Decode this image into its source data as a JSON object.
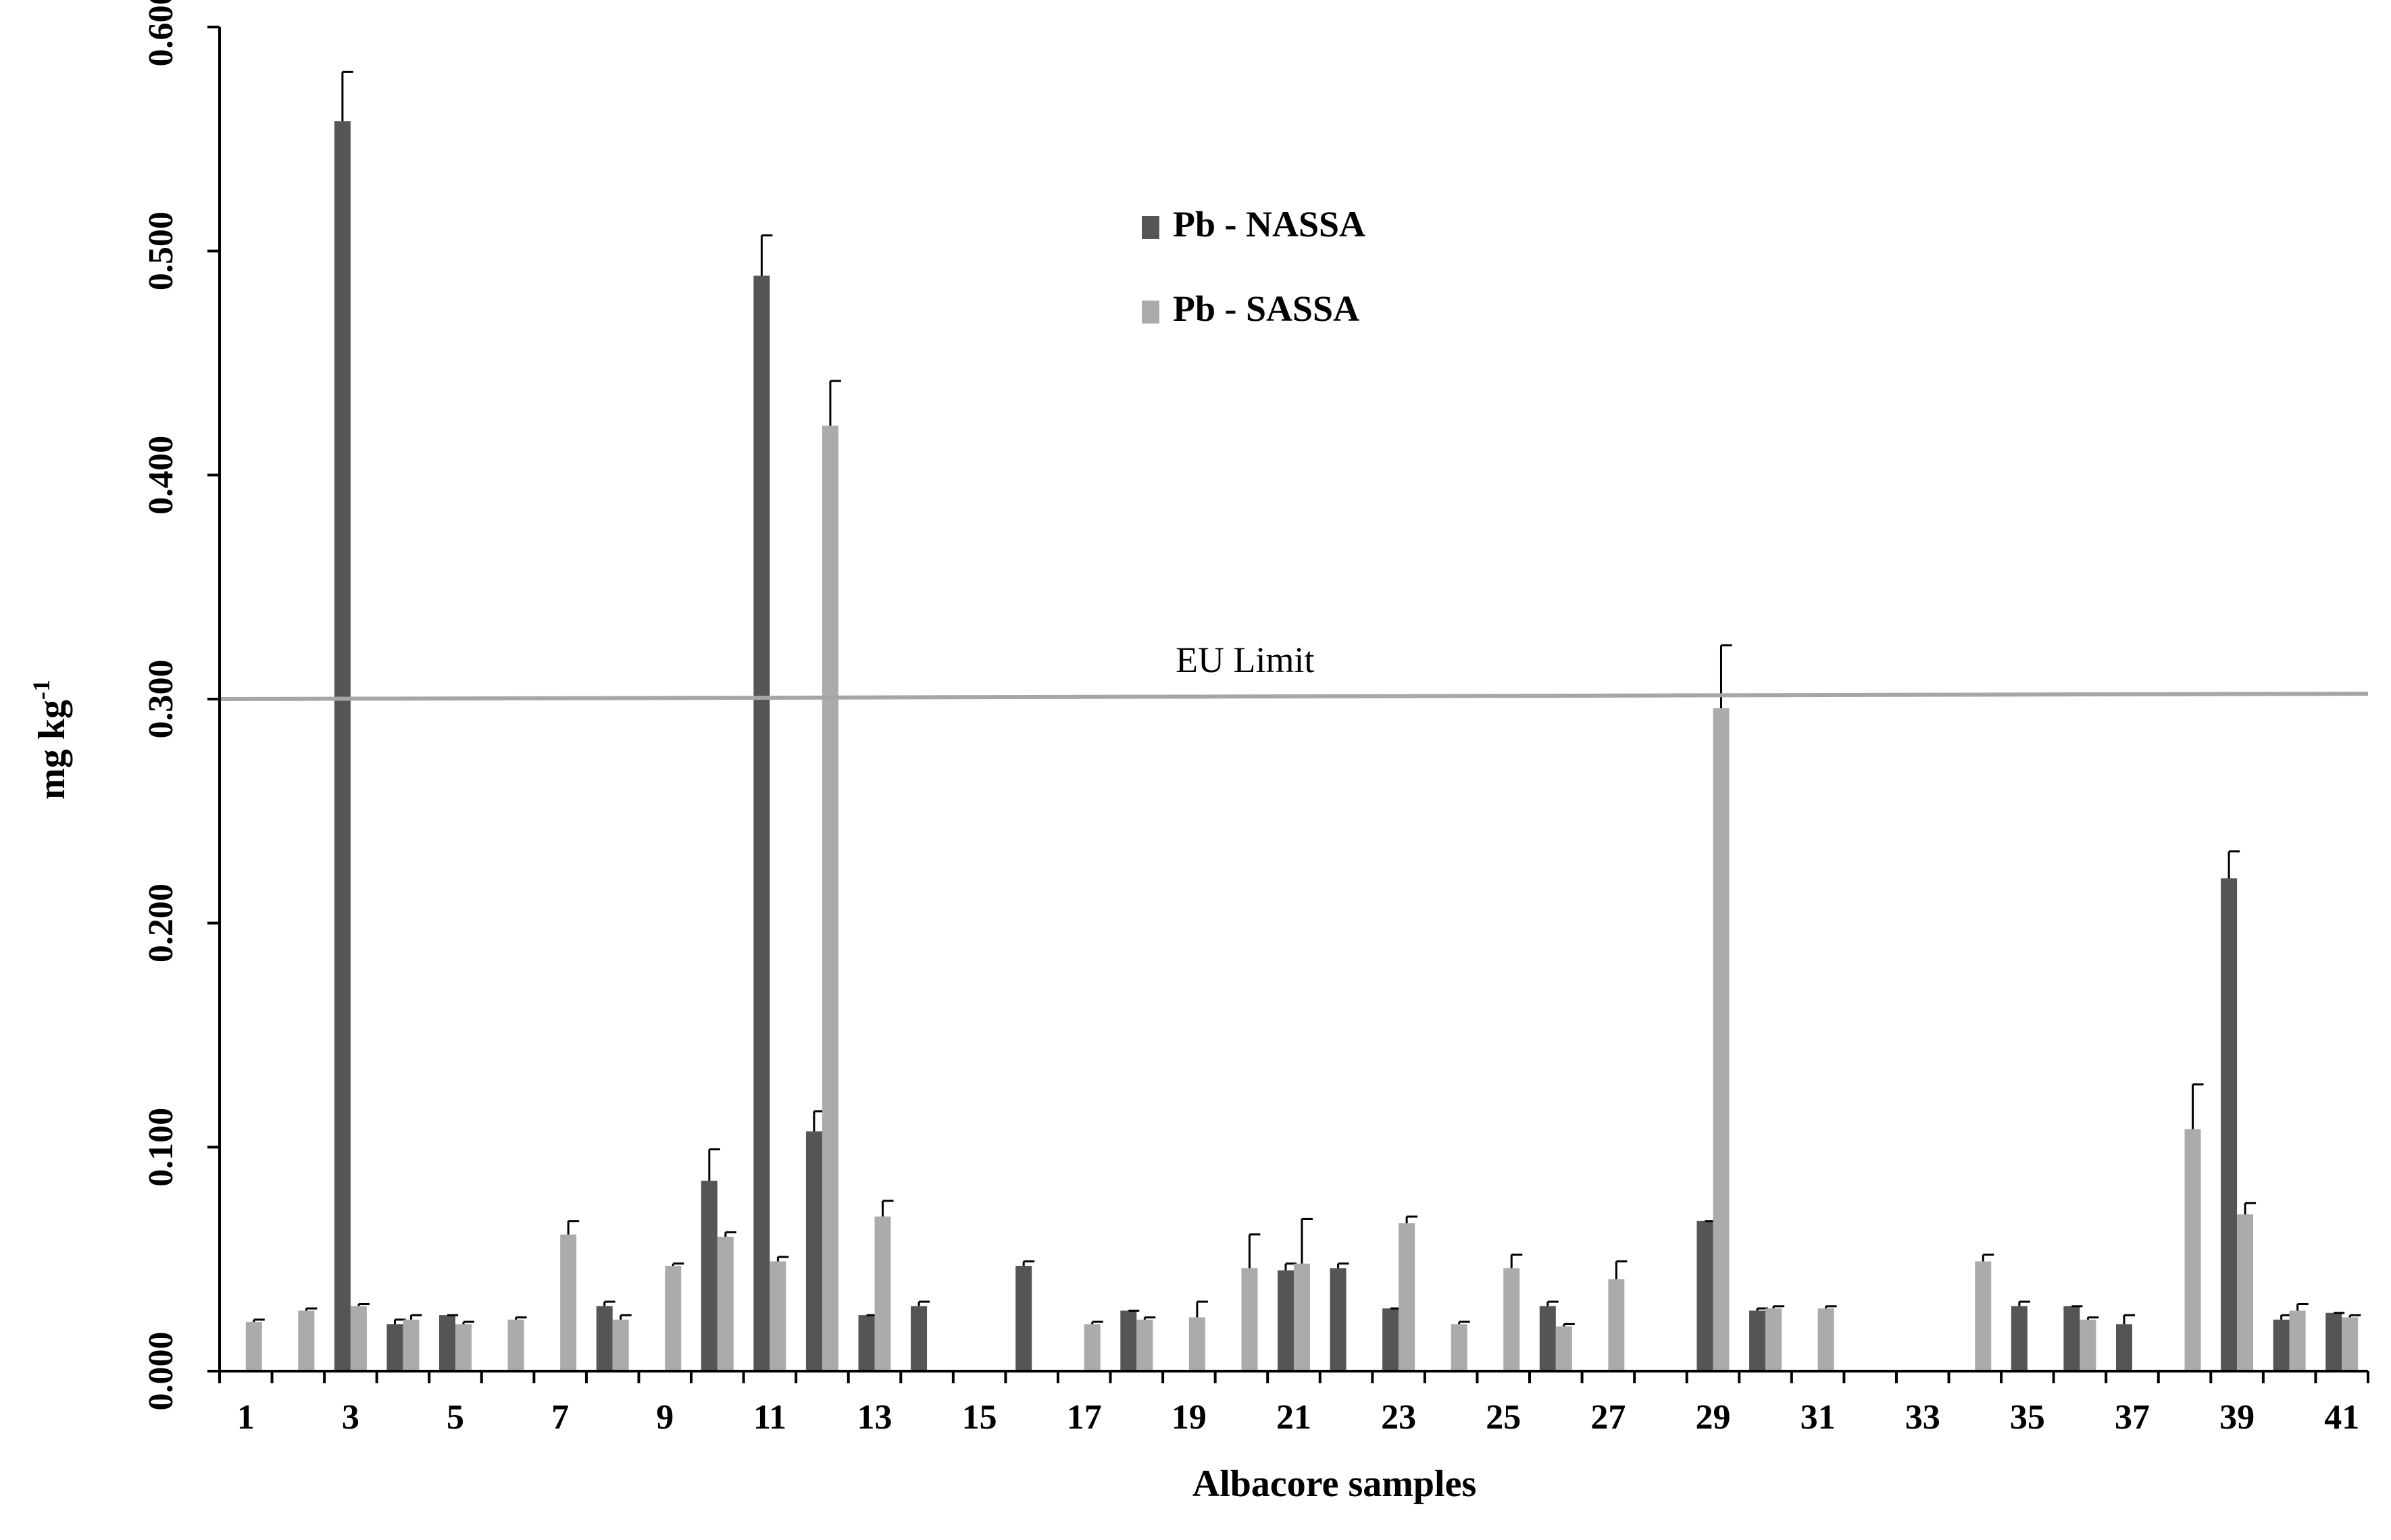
{
  "chart_data": {
    "type": "bar",
    "xlabel": "Albacore samples",
    "ylabel": "mg kg",
    "ylabel_superscript": "-1",
    "ylim": [
      0,
      0.6
    ],
    "yticks": [
      "0.000",
      "0.100",
      "0.200",
      "0.300",
      "0.400",
      "0.500",
      "0.600"
    ],
    "categories": [
      1,
      2,
      3,
      4,
      5,
      6,
      7,
      8,
      9,
      10,
      11,
      12,
      13,
      14,
      15,
      16,
      17,
      18,
      19,
      20,
      21,
      22,
      23,
      24,
      25,
      26,
      27,
      28,
      29,
      30,
      31,
      32,
      33,
      34,
      35,
      36,
      37,
      38,
      39,
      40,
      41
    ],
    "xtick_labels": [
      "1",
      "3",
      "5",
      "7",
      "9",
      "11",
      "13",
      "15",
      "17",
      "19",
      "21",
      "23",
      "25",
      "27",
      "29",
      "31",
      "33",
      "35",
      "37",
      "39",
      "41"
    ],
    "legend_position": "top-center",
    "grid": false,
    "series": [
      {
        "name": "Pb - NASSA",
        "color": "#555555",
        "values": [
          0,
          0,
          0.558,
          0.021,
          0.025,
          0,
          0,
          0.029,
          0,
          0.085,
          0.489,
          0.107,
          0.025,
          0.029,
          0,
          0.047,
          0,
          0.027,
          0,
          0,
          0.045,
          0.046,
          0.028,
          0,
          0,
          0.029,
          0,
          0,
          0.067,
          0.027,
          0,
          0,
          0,
          0,
          0.029,
          0.029,
          0.021,
          0,
          0.22,
          0.023,
          0.026
        ],
        "errors": [
          0,
          0,
          0.022,
          0.002,
          0.0,
          0,
          0,
          0.002,
          0,
          0.014,
          0.018,
          0.009,
          0,
          0.002,
          0,
          0.002,
          0,
          0,
          0,
          0,
          0.003,
          0.002,
          0,
          0,
          0,
          0.002,
          0,
          0,
          0,
          0.001,
          0,
          0,
          0,
          0,
          0.002,
          0,
          0.004,
          0,
          0.012,
          0.002,
          0
        ]
      },
      {
        "name": "Pb - SASSA",
        "color": "#ababab",
        "values": [
          0.022,
          0.027,
          0.029,
          0.023,
          0.021,
          0.023,
          0.061,
          0.023,
          0.047,
          0.06,
          0.049,
          0.422,
          0.069,
          0,
          0,
          0,
          0.021,
          0.023,
          0.024,
          0.046,
          0.048,
          0,
          0.066,
          0.021,
          0.046,
          0.02,
          0.041,
          0,
          0.296,
          0.028,
          0.028,
          0,
          0,
          0.049,
          0,
          0.023,
          0,
          0.108,
          0.07,
          0.027,
          0.024
        ],
        "errors": [
          0.001,
          0.001,
          0.001,
          0.002,
          0.001,
          0.001,
          0.006,
          0.002,
          0.001,
          0.002,
          0.002,
          0.02,
          0.007,
          0,
          0,
          0,
          0.001,
          0.001,
          0.007,
          0.015,
          0.02,
          0,
          0.003,
          0.001,
          0.006,
          0.001,
          0.008,
          0,
          0.028,
          0.001,
          0.001,
          0,
          0,
          0.003,
          0,
          0.001,
          0,
          0.02,
          0.005,
          0.003,
          0.001
        ]
      }
    ],
    "reference_line": {
      "label": "EU Limit",
      "value": 0.3,
      "color": "#a6a6a6"
    }
  }
}
